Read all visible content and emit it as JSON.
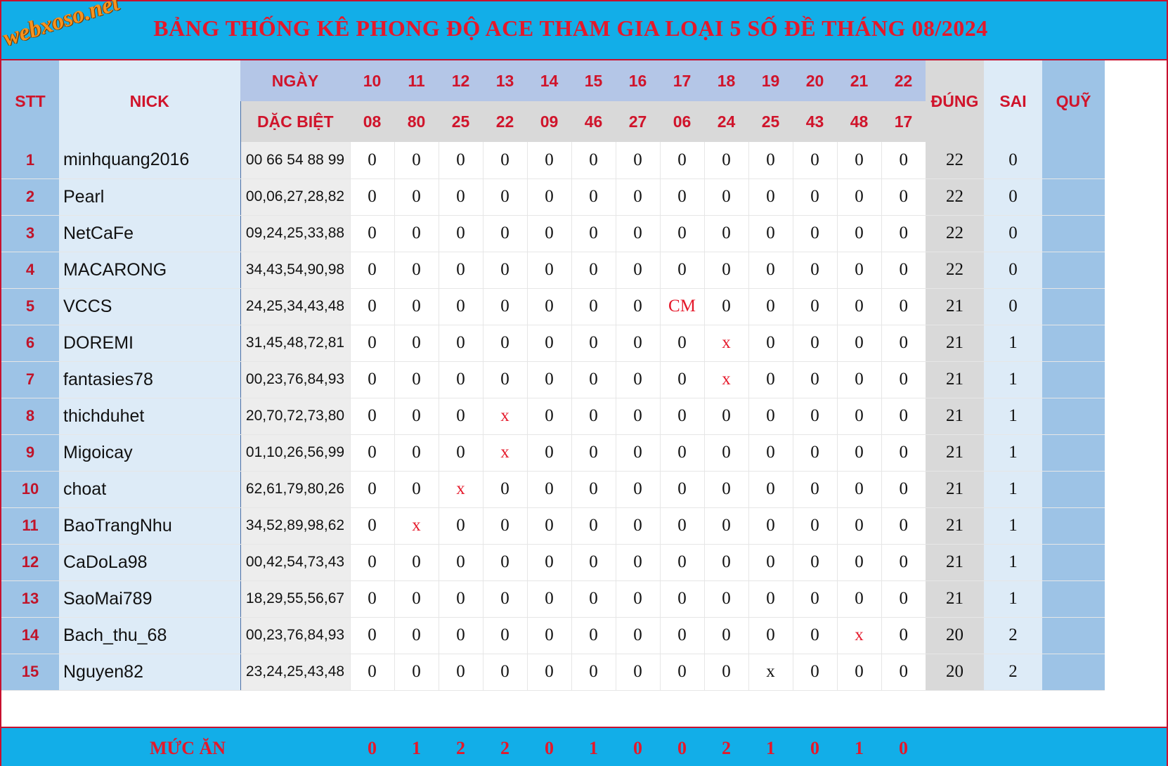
{
  "title": "BẢNG THỐNG KÊ PHONG ĐỘ ACE THAM GIA LOẠI 5 SỐ ĐỀ THÁNG 08/2024",
  "logo": "webxoso.net",
  "headers": {
    "stt": "STT",
    "nick": "NICK",
    "ngay": "NGÀY",
    "dac_biet": "DẶC BIỆT",
    "dung": "ĐÚNG",
    "sai": "SAI",
    "quy": "QUỸ"
  },
  "days": [
    "10",
    "11",
    "12",
    "13",
    "14",
    "15",
    "16",
    "17",
    "18",
    "19",
    "20",
    "21",
    "22"
  ],
  "specials": [
    "08",
    "80",
    "25",
    "22",
    "09",
    "46",
    "27",
    "06",
    "24",
    "25",
    "43",
    "48",
    "17"
  ],
  "rows": [
    {
      "stt": "1",
      "nick": "minhquang2016",
      "numbers": "00 66 54 88 99",
      "marks": [
        "0",
        "0",
        "0",
        "0",
        "0",
        "0",
        "0",
        "0",
        "0",
        "0",
        "0",
        "0",
        "0"
      ],
      "dung": "22",
      "sai": "0"
    },
    {
      "stt": "2",
      "nick": "Pearl",
      "numbers": "00,06,27,28,82",
      "marks": [
        "0",
        "0",
        "0",
        "0",
        "0",
        "0",
        "0",
        "0",
        "0",
        "0",
        "0",
        "0",
        "0"
      ],
      "dung": "22",
      "sai": "0"
    },
    {
      "stt": "3",
      "nick": "NetCaFe",
      "numbers": "09,24,25,33,88",
      "marks": [
        "0",
        "0",
        "0",
        "0",
        "0",
        "0",
        "0",
        "0",
        "0",
        "0",
        "0",
        "0",
        "0"
      ],
      "dung": "22",
      "sai": "0"
    },
    {
      "stt": "4",
      "nick": "MACARONG",
      "numbers": "34,43,54,90,98",
      "marks": [
        "0",
        "0",
        "0",
        "0",
        "0",
        "0",
        "0",
        "0",
        "0",
        "0",
        "0",
        "0",
        "0"
      ],
      "dung": "22",
      "sai": "0"
    },
    {
      "stt": "5",
      "nick": "VCCS",
      "numbers": "24,25,34,43,48",
      "marks": [
        "0",
        "0",
        "0",
        "0",
        "0",
        "0",
        "0",
        "CM",
        "0",
        "0",
        "0",
        "0",
        "0"
      ],
      "dung": "21",
      "sai": "0"
    },
    {
      "stt": "6",
      "nick": "DOREMI",
      "numbers": "31,45,48,72,81",
      "marks": [
        "0",
        "0",
        "0",
        "0",
        "0",
        "0",
        "0",
        "0",
        "x",
        "0",
        "0",
        "0",
        "0"
      ],
      "dung": "21",
      "sai": "1"
    },
    {
      "stt": "7",
      "nick": "fantasies78",
      "numbers": "00,23,76,84,93",
      "marks": [
        "0",
        "0",
        "0",
        "0",
        "0",
        "0",
        "0",
        "0",
        "x",
        "0",
        "0",
        "0",
        "0"
      ],
      "dung": "21",
      "sai": "1"
    },
    {
      "stt": "8",
      "nick": "thichduhet",
      "numbers": "20,70,72,73,80",
      "marks": [
        "0",
        "0",
        "0",
        "x",
        "0",
        "0",
        "0",
        "0",
        "0",
        "0",
        "0",
        "0",
        "0"
      ],
      "dung": "21",
      "sai": "1"
    },
    {
      "stt": "9",
      "nick": "Migoicay",
      "numbers": "01,10,26,56,99",
      "marks": [
        "0",
        "0",
        "0",
        "x",
        "0",
        "0",
        "0",
        "0",
        "0",
        "0",
        "0",
        "0",
        "0"
      ],
      "dung": "21",
      "sai": "1"
    },
    {
      "stt": "10",
      "nick": "choat",
      "numbers": "62,61,79,80,26",
      "marks": [
        "0",
        "0",
        "x",
        "0",
        "0",
        "0",
        "0",
        "0",
        "0",
        "0",
        "0",
        "0",
        "0"
      ],
      "dung": "21",
      "sai": "1"
    },
    {
      "stt": "11",
      "nick": "BaoTrangNhu",
      "numbers": "34,52,89,98,62",
      "marks": [
        "0",
        "x",
        "0",
        "0",
        "0",
        "0",
        "0",
        "0",
        "0",
        "0",
        "0",
        "0",
        "0"
      ],
      "dung": "21",
      "sai": "1"
    },
    {
      "stt": "12",
      "nick": "CaDoLa98",
      "numbers": "00,42,54,73,43",
      "marks": [
        "0",
        "0",
        "0",
        "0",
        "0",
        "0",
        "0",
        "0",
        "0",
        "0",
        "0",
        "0",
        "0"
      ],
      "dung": "21",
      "sai": "1"
    },
    {
      "stt": "13",
      "nick": "SaoMai789",
      "numbers": "18,29,55,56,67",
      "marks": [
        "0",
        "0",
        "0",
        "0",
        "0",
        "0",
        "0",
        "0",
        "0",
        "0",
        "0",
        "0",
        "0"
      ],
      "dung": "21",
      "sai": "1"
    },
    {
      "stt": "14",
      "nick": "Bach_thu_68",
      "numbers": "00,23,76,84,93",
      "marks": [
        "0",
        "0",
        "0",
        "0",
        "0",
        "0",
        "0",
        "0",
        "0",
        "0",
        "0",
        "x",
        "0"
      ],
      "dung": "20",
      "sai": "2"
    },
    {
      "stt": "15",
      "nick": "Nguyen82",
      "numbers": "23,24,25,43,48",
      "marks": [
        "0",
        "0",
        "0",
        "0",
        "0",
        "0",
        "0",
        "0",
        "0",
        "x",
        "0",
        "0",
        "0"
      ],
      "dung": "20",
      "sai": "2"
    }
  ],
  "red_marks": [
    [
      4,
      7
    ],
    [
      5,
      8
    ],
    [
      6,
      8
    ],
    [
      7,
      3
    ],
    [
      8,
      3
    ],
    [
      9,
      2
    ],
    [
      10,
      1
    ],
    [
      13,
      11
    ]
  ],
  "muc_an_label": "MỨC ĂN",
  "muc_an": [
    "0",
    "1",
    "2",
    "2",
    "0",
    "1",
    "0",
    "0",
    "2",
    "1",
    "0",
    "1",
    "0"
  ]
}
